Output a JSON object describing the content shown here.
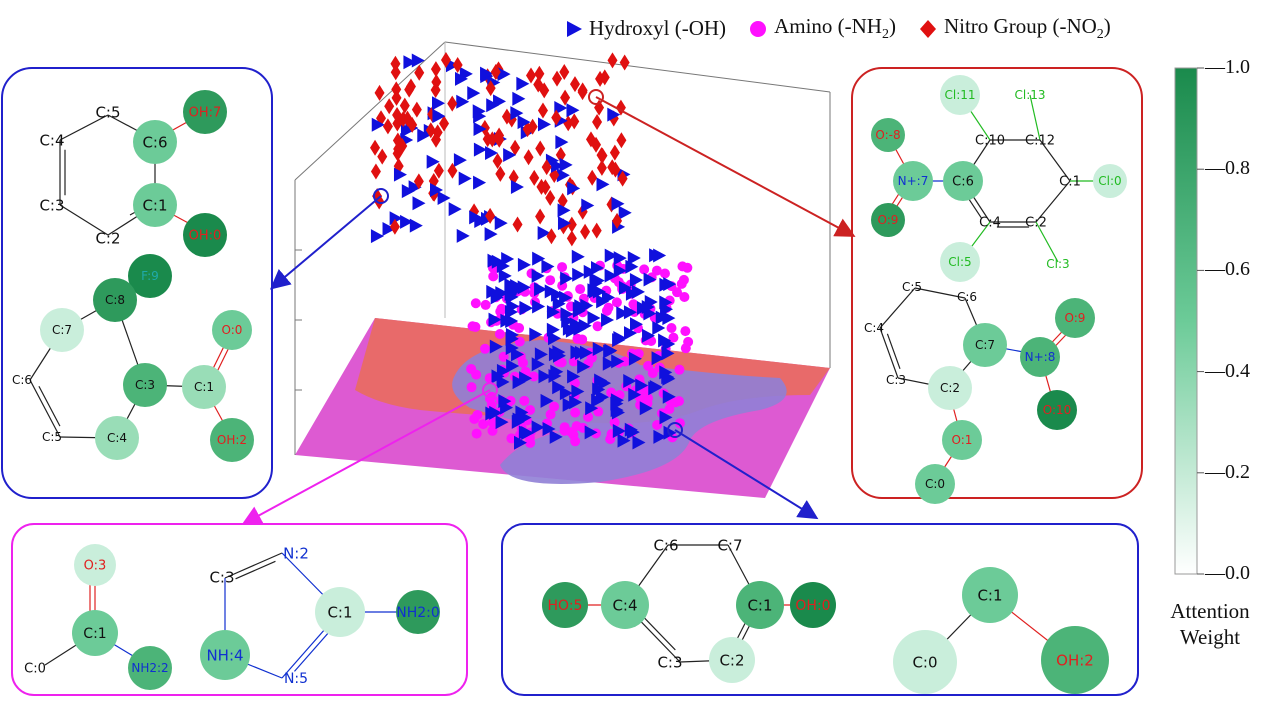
{
  "legend": {
    "hydroxyl": {
      "prefix": "Hydroxyl (-OH)",
      "color": "#1010dd"
    },
    "amino": {
      "prefix": "Amino (-NH",
      "sub": "2",
      "suffix": ")",
      "color": "#ff10ff"
    },
    "nitro": {
      "prefix": "Nitro Group (-NO",
      "sub": "2",
      "suffix": ")",
      "color": "#e01010"
    }
  },
  "colorbar": {
    "ticks": [
      "1.0",
      "0.8",
      "0.6",
      "0.4",
      "0.2",
      "0.0"
    ],
    "title_line1": "Attention",
    "title_line2": "Weight",
    "color_high": "#1a8a4c",
    "color_low": "#ffffff"
  },
  "panel_colors": {
    "hydroxyl": "#2020cc",
    "amino": "#ee22ee",
    "nitro": "#cc2222"
  },
  "molecules": {
    "top_left_a": {
      "c5": "C:5",
      "c6": "C:6",
      "oh7": "OH:7",
      "c4": "C:4",
      "c3": "C:3",
      "c1": "C:1",
      "c2": "C:2",
      "oh0": "OH:0"
    },
    "top_left_b": {
      "f9": "F:9",
      "c7": "C:7",
      "c8": "C:8",
      "o0": "O:0",
      "c6": "C:6",
      "c3": "C:3",
      "c1": "C:1",
      "c5": "C:5",
      "c4": "C:4",
      "oh2": "OH:2"
    },
    "top_right_a": {
      "cl11": "Cl:11",
      "cl13": "Cl:13",
      "o8": "O:-8",
      "c10": "C:10",
      "c12": "C:12",
      "n7": "N+:7",
      "c6": "C:6",
      "c1": "C:1",
      "cl0": "Cl:0",
      "o9": "O:9",
      "c4": "C:4",
      "c2": "C:2",
      "cl5": "Cl:5",
      "cl3": "Cl:3"
    },
    "top_right_b": {
      "c5": "C:5",
      "c6": "C:6",
      "o9": "O:9",
      "c4": "C:4",
      "c7": "C:7",
      "n8": "N+:8",
      "c3": "C:3",
      "c2": "C:2",
      "o10": "O:10",
      "o1": "O:1",
      "c0": "C:0"
    },
    "bottom_left_a": {
      "o3": "O:3",
      "c1": "C:1",
      "c0": "C:0",
      "nh2": "NH2:2"
    },
    "bottom_left_b": {
      "c3": "C:3",
      "n2": "N:2",
      "c1": "C:1",
      "nh0": "NH2:0",
      "nh4": "NH:4",
      "n5": "N:5"
    },
    "bottom_right_a": {
      "c6": "C:6",
      "c7": "C:7",
      "ho5": "HO:5",
      "c4": "C:4",
      "c1": "C:1",
      "oh0": "OH:0",
      "c3": "C:3",
      "c2": "C:2"
    },
    "bottom_right_b": {
      "c1": "C:1",
      "c0": "C:0",
      "oh2": "OH:2"
    }
  }
}
